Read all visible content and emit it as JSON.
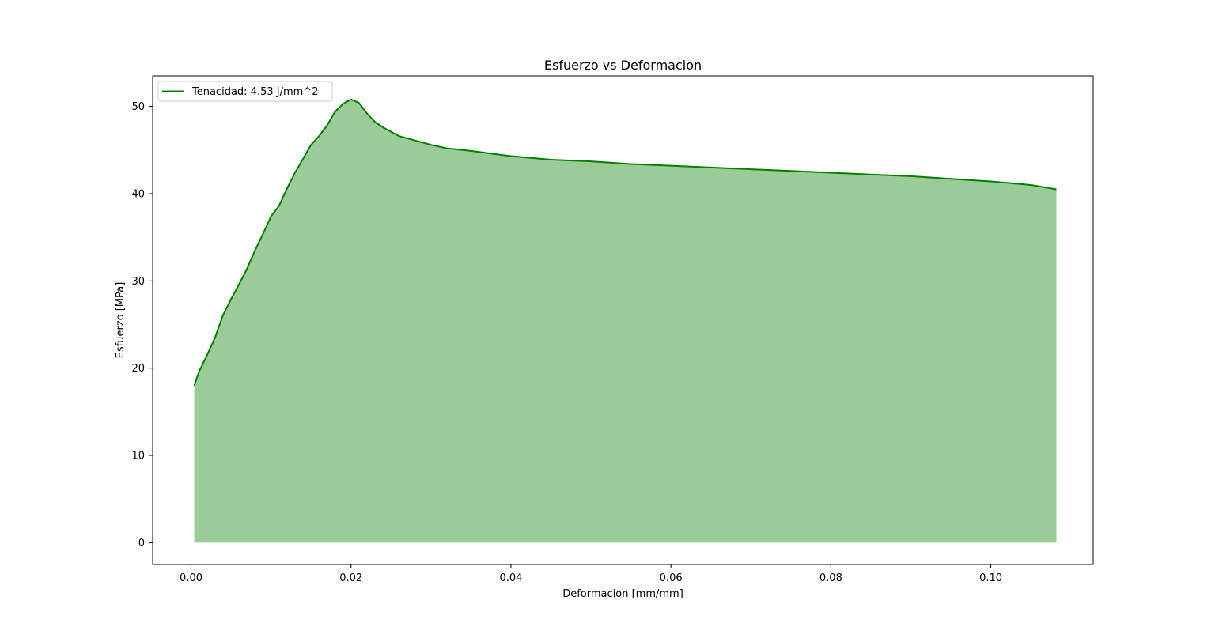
{
  "chart_data": {
    "type": "area",
    "title": "Esfuerzo vs Deformacion",
    "xlabel": "Deformacion [mm/mm]",
    "ylabel": "Esfuerzo [MPa]",
    "xlim": [
      -0.0048,
      0.1128
    ],
    "ylim": [
      -2.5,
      53.5
    ],
    "x_ticks": [
      0.0,
      0.02,
      0.04,
      0.06,
      0.08,
      0.1
    ],
    "x_tick_labels": [
      "0.00",
      "0.02",
      "0.04",
      "0.06",
      "0.08",
      "0.10"
    ],
    "y_ticks": [
      0,
      10,
      20,
      30,
      40,
      50
    ],
    "y_tick_labels": [
      "0",
      "10",
      "20",
      "30",
      "40",
      "50"
    ],
    "grid": false,
    "legend_position": "top-left",
    "series": [
      {
        "name": "Tenacidad: 4.53 J/mm^2",
        "color": "#008000",
        "fill_color": "#9bcb97",
        "x": [
          0.0004,
          0.001,
          0.002,
          0.003,
          0.004,
          0.005,
          0.006,
          0.007,
          0.008,
          0.009,
          0.01,
          0.011,
          0.012,
          0.013,
          0.014,
          0.015,
          0.016,
          0.017,
          0.018,
          0.019,
          0.02,
          0.021,
          0.022,
          0.023,
          0.024,
          0.025,
          0.026,
          0.028,
          0.03,
          0.032,
          0.035,
          0.04,
          0.045,
          0.05,
          0.055,
          0.06,
          0.065,
          0.07,
          0.075,
          0.08,
          0.085,
          0.09,
          0.095,
          0.1,
          0.105,
          0.1082
        ],
        "y": [
          18.0,
          19.6,
          21.5,
          23.5,
          26.1,
          27.9,
          29.6,
          31.4,
          33.5,
          35.4,
          37.4,
          38.6,
          40.6,
          42.4,
          44.0,
          45.6,
          46.6,
          47.8,
          49.4,
          50.3,
          50.8,
          50.4,
          49.2,
          48.2,
          47.6,
          47.1,
          46.6,
          46.1,
          45.6,
          45.2,
          44.9,
          44.3,
          43.9,
          43.7,
          43.4,
          43.2,
          43.0,
          42.8,
          42.6,
          42.4,
          42.2,
          42.0,
          41.7,
          41.4,
          41.0,
          40.5
        ]
      }
    ]
  }
}
